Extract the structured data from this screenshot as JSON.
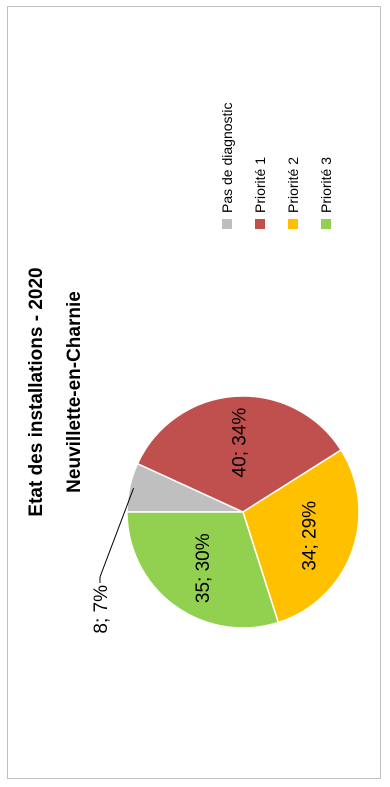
{
  "chart_data": {
    "type": "pie",
    "title": "Etat des installations - 2020",
    "subtitle": "Neuvillette-en-Charnie",
    "slices": [
      {
        "label": "Pas de diagnostic",
        "value": 8,
        "percent": 7,
        "data_label": "8; 7%",
        "color": "#bfbfbf"
      },
      {
        "label": "Priorité 1",
        "value": 40,
        "percent": 34,
        "data_label": "40; 34%",
        "color": "#c0504d"
      },
      {
        "label": "Priorité 2",
        "value": 34,
        "percent": 29,
        "data_label": "34; 29%",
        "color": "#ffc000"
      },
      {
        "label": "Priorité 3",
        "value": 35,
        "percent": 30,
        "data_label": "35; 30%",
        "color": "#92d050"
      }
    ],
    "legend": {
      "placement": "right",
      "entries": [
        "Pas de diagnostic",
        "Priorité 1",
        "Priorité 2",
        "Priorité 3"
      ]
    },
    "orientation": "rotated 90° counter-clockwise"
  }
}
